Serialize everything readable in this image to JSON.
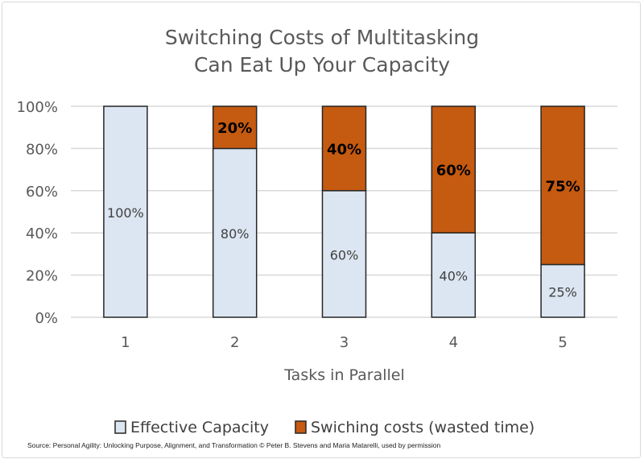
{
  "chart_data": {
    "type": "bar",
    "stacked": true,
    "title": [
      "Switching Costs of Multitasking",
      "Can Eat Up Your Capacity"
    ],
    "xlabel": "Tasks in Parallel",
    "ylabel": "",
    "categories": [
      "1",
      "2",
      "3",
      "4",
      "5"
    ],
    "ylim": [
      0,
      100
    ],
    "yticks": [
      "0%",
      "20%",
      "40%",
      "60%",
      "80%",
      "100%"
    ],
    "grid": true,
    "legend_position": "bottom",
    "series": [
      {
        "name": "Effective Capacity",
        "values": [
          100,
          80,
          60,
          40,
          25
        ],
        "labels": [
          "100%",
          "80%",
          "60%",
          "40%",
          "25%"
        ],
        "color": "#dce6f2"
      },
      {
        "name": "Swiching costs (wasted time)",
        "values": [
          0,
          20,
          40,
          60,
          75
        ],
        "labels": [
          "",
          "20%",
          "40%",
          "60%",
          "75%"
        ],
        "color": "#c55a11"
      }
    ]
  },
  "source": "Source: Personal Agility: Unlocking Purpose, Alignment, and Transformation © Peter B. Stevens and Maria Matarelli, used by permission"
}
